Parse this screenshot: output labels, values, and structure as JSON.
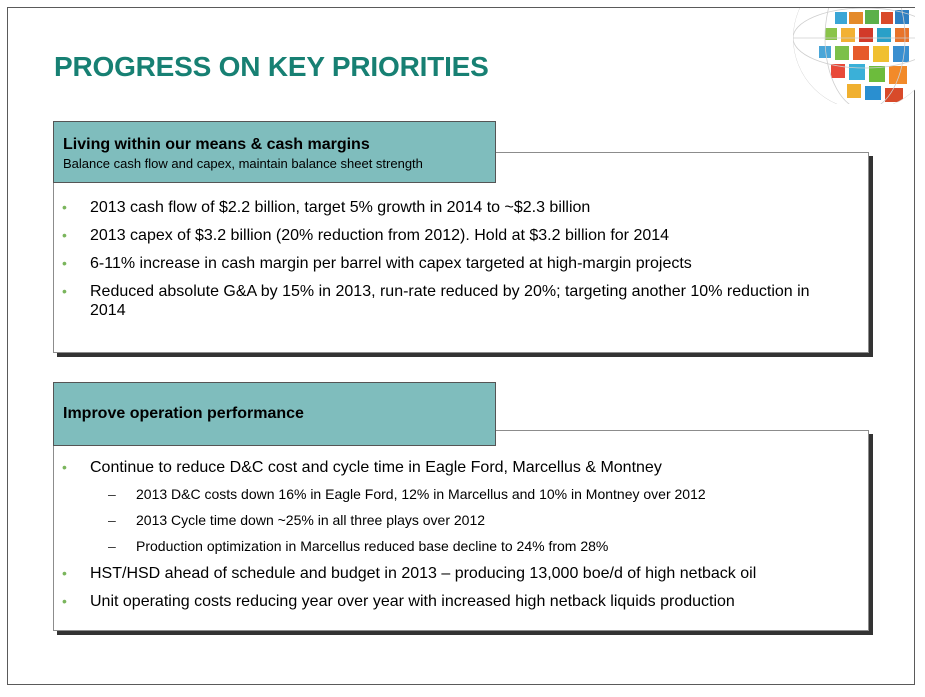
{
  "title": "PROGRESS ON KEY PRIORITIES",
  "section1": {
    "title": "Living within our means & cash margins",
    "subtitle": "Balance cash flow and capex, maintain balance sheet strength",
    "bullets": [
      "2013 cash flow of $2.2 billion, target 5% growth in 2014 to ~$2.3 billion",
      "2013 capex of $3.2 billion (20% reduction from 2012). Hold at $3.2 billion for 2014",
      "6-11% increase in cash margin per barrel with capex targeted at high-margin projects",
      "Reduced absolute G&A by 15% in 2013, run-rate reduced by 20%; targeting another 10% reduction in 2014"
    ]
  },
  "section2": {
    "title": "Improve operation performance",
    "bullet1": "Continue to reduce D&C cost and cycle time in Eagle Ford, Marcellus & Montney",
    "subbullets": [
      "2013 D&C costs down 16% in Eagle Ford, 12% in Marcellus and 10% in Montney over 2012",
      "2013 Cycle time down ~25% in all three plays over 2012",
      "Production optimization in Marcellus reduced base decline to 24% from 28%"
    ],
    "bullet2": "HST/HSD ahead of schedule and budget in 2013 – producing 13,000 boe/d  of high netback oil",
    "bullet3": "Unit operating costs reducing year over year with increased high netback liquids production"
  },
  "colors": {
    "title": "#178073",
    "header_fill": "#7fbdbd",
    "bullet": "#7ab55c"
  },
  "icons": {
    "bullet": "•",
    "dash": "–",
    "decoration": "globe-mosaic-icon"
  }
}
